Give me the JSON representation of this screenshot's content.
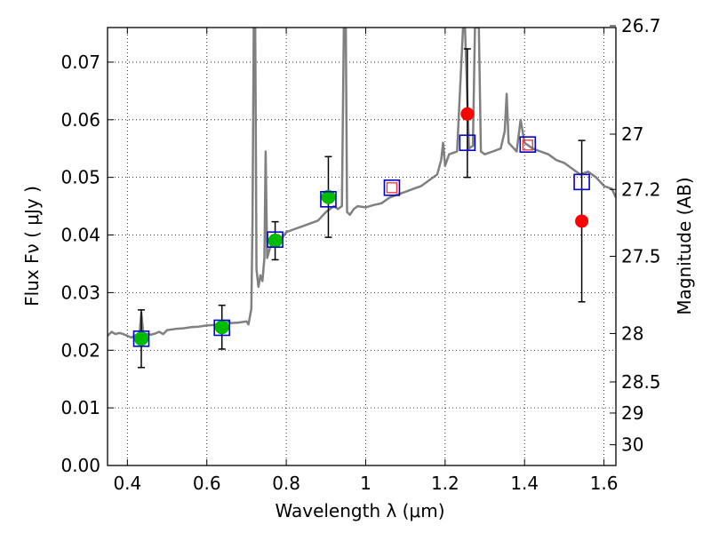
{
  "chart_data": {
    "type": "scatter",
    "xlabel": "Wavelength  λ (μm)",
    "ylabel": "Flux  Fν  ( μJy )",
    "y2label": "Magnitude (AB)",
    "xlim": [
      0.35,
      1.63
    ],
    "ylim": [
      0.0,
      0.076
    ],
    "grid": true,
    "x_ticks": [
      0.4,
      0.6,
      0.8,
      1.0,
      1.2,
      1.4,
      1.6
    ],
    "x_tick_labels": [
      "0.4",
      "0.6",
      "0.8",
      "1",
      "1.2",
      "1.4",
      "1.6"
    ],
    "y_ticks": [
      0.0,
      0.01,
      0.02,
      0.03,
      0.04,
      0.05,
      0.06,
      0.07
    ],
    "y_tick_labels": [
      "0.00",
      "0.01",
      "0.02",
      "0.03",
      "0.04",
      "0.05",
      "0.06",
      "0.07"
    ],
    "y2_ticks": [
      {
        "label": "26.7",
        "flux": 0.0763
      },
      {
        "label": "27",
        "flux": 0.0575
      },
      {
        "label": "27.2",
        "flux": 0.0479
      },
      {
        "label": "27.5",
        "flux": 0.0363
      },
      {
        "label": "28",
        "flux": 0.0229
      },
      {
        "label": "28.5",
        "flux": 0.0145
      },
      {
        "label": "29",
        "flux": 0.0091
      },
      {
        "label": "30",
        "flux": 0.0036
      }
    ],
    "colors": {
      "model": "#808080",
      "model_photometry": "#0000cc",
      "detections": "#00bb00",
      "upper_limits": "#ff0000",
      "upper_limit_inner": "#ee3333",
      "errorbars": "#000000"
    },
    "series": [
      {
        "type": "line",
        "points": [
          [
            0.35,
            0.0225
          ],
          [
            0.36,
            0.0232
          ],
          [
            0.37,
            0.0228
          ],
          [
            0.38,
            0.023
          ],
          [
            0.39,
            0.0228
          ],
          [
            0.4,
            0.0225
          ],
          [
            0.41,
            0.0222
          ],
          [
            0.42,
            0.0226
          ],
          [
            0.43,
            0.0225
          ],
          [
            0.435,
            0.0265
          ],
          [
            0.44,
            0.023
          ],
          [
            0.45,
            0.0228
          ],
          [
            0.46,
            0.0227
          ],
          [
            0.47,
            0.0229
          ],
          [
            0.48,
            0.0232
          ],
          [
            0.49,
            0.0228
          ],
          [
            0.5,
            0.0235
          ],
          [
            0.52,
            0.0237
          ],
          [
            0.54,
            0.0238
          ],
          [
            0.56,
            0.024
          ],
          [
            0.58,
            0.0241
          ],
          [
            0.6,
            0.0243
          ],
          [
            0.62,
            0.0244
          ],
          [
            0.64,
            0.0245
          ],
          [
            0.655,
            0.025
          ],
          [
            0.66,
            0.0247
          ],
          [
            0.68,
            0.0248
          ],
          [
            0.7,
            0.025
          ],
          [
            0.705,
            0.0245
          ],
          [
            0.712,
            0.0272
          ],
          [
            0.715,
            0.042
          ],
          [
            0.718,
            0.076
          ],
          [
            0.722,
            0.076
          ],
          [
            0.725,
            0.034
          ],
          [
            0.73,
            0.031
          ],
          [
            0.735,
            0.033
          ],
          [
            0.74,
            0.032
          ],
          [
            0.745,
            0.036
          ],
          [
            0.748,
            0.0545
          ],
          [
            0.752,
            0.036
          ],
          [
            0.76,
            0.038
          ],
          [
            0.77,
            0.0385
          ],
          [
            0.78,
            0.04
          ],
          [
            0.79,
            0.0395
          ],
          [
            0.8,
            0.0405
          ],
          [
            0.82,
            0.041
          ],
          [
            0.84,
            0.0415
          ],
          [
            0.86,
            0.042
          ],
          [
            0.88,
            0.0425
          ],
          [
            0.9,
            0.044
          ],
          [
            0.92,
            0.045
          ],
          [
            0.93,
            0.0445
          ],
          [
            0.94,
            0.045
          ],
          [
            0.945,
            0.076
          ],
          [
            0.95,
            0.076
          ],
          [
            0.953,
            0.044
          ],
          [
            0.96,
            0.0435
          ],
          [
            0.97,
            0.0445
          ],
          [
            0.98,
            0.045
          ],
          [
            1.0,
            0.0448
          ],
          [
            1.02,
            0.0452
          ],
          [
            1.04,
            0.0455
          ],
          [
            1.06,
            0.0465
          ],
          [
            1.08,
            0.047
          ],
          [
            1.1,
            0.0475
          ],
          [
            1.12,
            0.048
          ],
          [
            1.14,
            0.0485
          ],
          [
            1.16,
            0.0495
          ],
          [
            1.18,
            0.0505
          ],
          [
            1.19,
            0.053
          ],
          [
            1.195,
            0.056
          ],
          [
            1.2,
            0.052
          ],
          [
            1.21,
            0.054
          ],
          [
            1.23,
            0.0545
          ],
          [
            1.245,
            0.076
          ],
          [
            1.25,
            0.076
          ],
          [
            1.26,
            0.055
          ],
          [
            1.27,
            0.0555
          ],
          [
            1.275,
            0.076
          ],
          [
            1.285,
            0.076
          ],
          [
            1.29,
            0.0545
          ],
          [
            1.3,
            0.054
          ],
          [
            1.32,
            0.0545
          ],
          [
            1.34,
            0.055
          ],
          [
            1.35,
            0.058
          ],
          [
            1.355,
            0.0645
          ],
          [
            1.36,
            0.056
          ],
          [
            1.38,
            0.0545
          ],
          [
            1.39,
            0.06
          ],
          [
            1.4,
            0.056
          ],
          [
            1.42,
            0.055
          ],
          [
            1.44,
            0.0545
          ],
          [
            1.46,
            0.054
          ],
          [
            1.48,
            0.053
          ],
          [
            1.5,
            0.0525
          ],
          [
            1.52,
            0.0515
          ],
          [
            1.54,
            0.0505
          ],
          [
            1.56,
            0.051
          ],
          [
            1.58,
            0.05
          ],
          [
            1.6,
            0.0485
          ],
          [
            1.62,
            0.048
          ],
          [
            1.63,
            0.0465
          ]
        ]
      },
      {
        "type": "scatter",
        "marker": "open-square",
        "points": [
          [
            0.435,
            0.022
          ],
          [
            0.638,
            0.0239
          ],
          [
            0.772,
            0.0392
          ],
          [
            0.906,
            0.0462
          ],
          [
            1.066,
            0.0482
          ],
          [
            1.256,
            0.056
          ],
          [
            1.408,
            0.0557
          ],
          [
            1.544,
            0.0492
          ]
        ]
      },
      {
        "type": "scatter",
        "marker": "filled-circle",
        "points": [
          {
            "x": 0.435,
            "y": 0.022,
            "yerr": [
              0.005,
              0.005
            ]
          },
          {
            "x": 0.638,
            "y": 0.024,
            "yerr": [
              0.0038,
              0.0038
            ]
          },
          {
            "x": 0.772,
            "y": 0.039,
            "yerr": [
              0.0033,
              0.0033
            ]
          },
          {
            "x": 0.906,
            "y": 0.0466,
            "yerr": [
              0.007,
              0.007
            ]
          }
        ]
      },
      {
        "type": "scatter",
        "marker": "filled-circle",
        "points": [
          {
            "x": 1.256,
            "y": 0.061,
            "yerr": [
              0.011,
              0.0113
            ]
          },
          {
            "x": 1.544,
            "y": 0.0424,
            "yerr": [
              0.014,
              0.014
            ]
          }
        ]
      },
      {
        "type": "scatter",
        "marker": "small-square",
        "points": [
          [
            1.066,
            0.0482
          ],
          [
            1.408,
            0.0556
          ]
        ]
      }
    ]
  }
}
